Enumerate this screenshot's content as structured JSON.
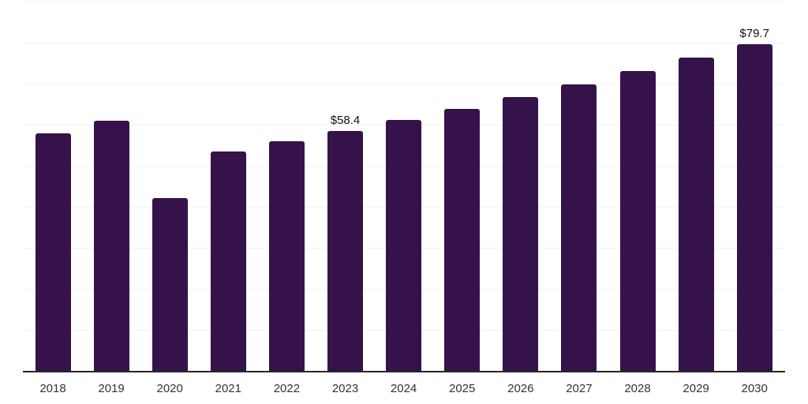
{
  "chart_data": {
    "type": "bar",
    "title": "",
    "xlabel": "",
    "ylabel": "",
    "categories": [
      "2018",
      "2019",
      "2020",
      "2021",
      "2022",
      "2023",
      "2024",
      "2025",
      "2026",
      "2027",
      "2028",
      "2029",
      "2030"
    ],
    "values": [
      57.9,
      61.0,
      42.1,
      53.4,
      56.0,
      58.4,
      61.1,
      63.9,
      66.8,
      69.8,
      73.0,
      76.3,
      79.7
    ],
    "ylim": [
      0,
      90
    ],
    "gridline_step": 10,
    "grid": "horizontal-only",
    "legend": "none",
    "y_tick_labels_visible": false,
    "data_labels": [
      {
        "category": "2023",
        "text": "$58.4"
      },
      {
        "category": "2030",
        "text": "$79.7"
      }
    ],
    "colors": {
      "bar": "#36124b",
      "gridline": "#f2f2f2",
      "axis_line": "#262626",
      "tick_label": "#333333",
      "data_label": "#111111",
      "background": "#ffffff"
    }
  }
}
